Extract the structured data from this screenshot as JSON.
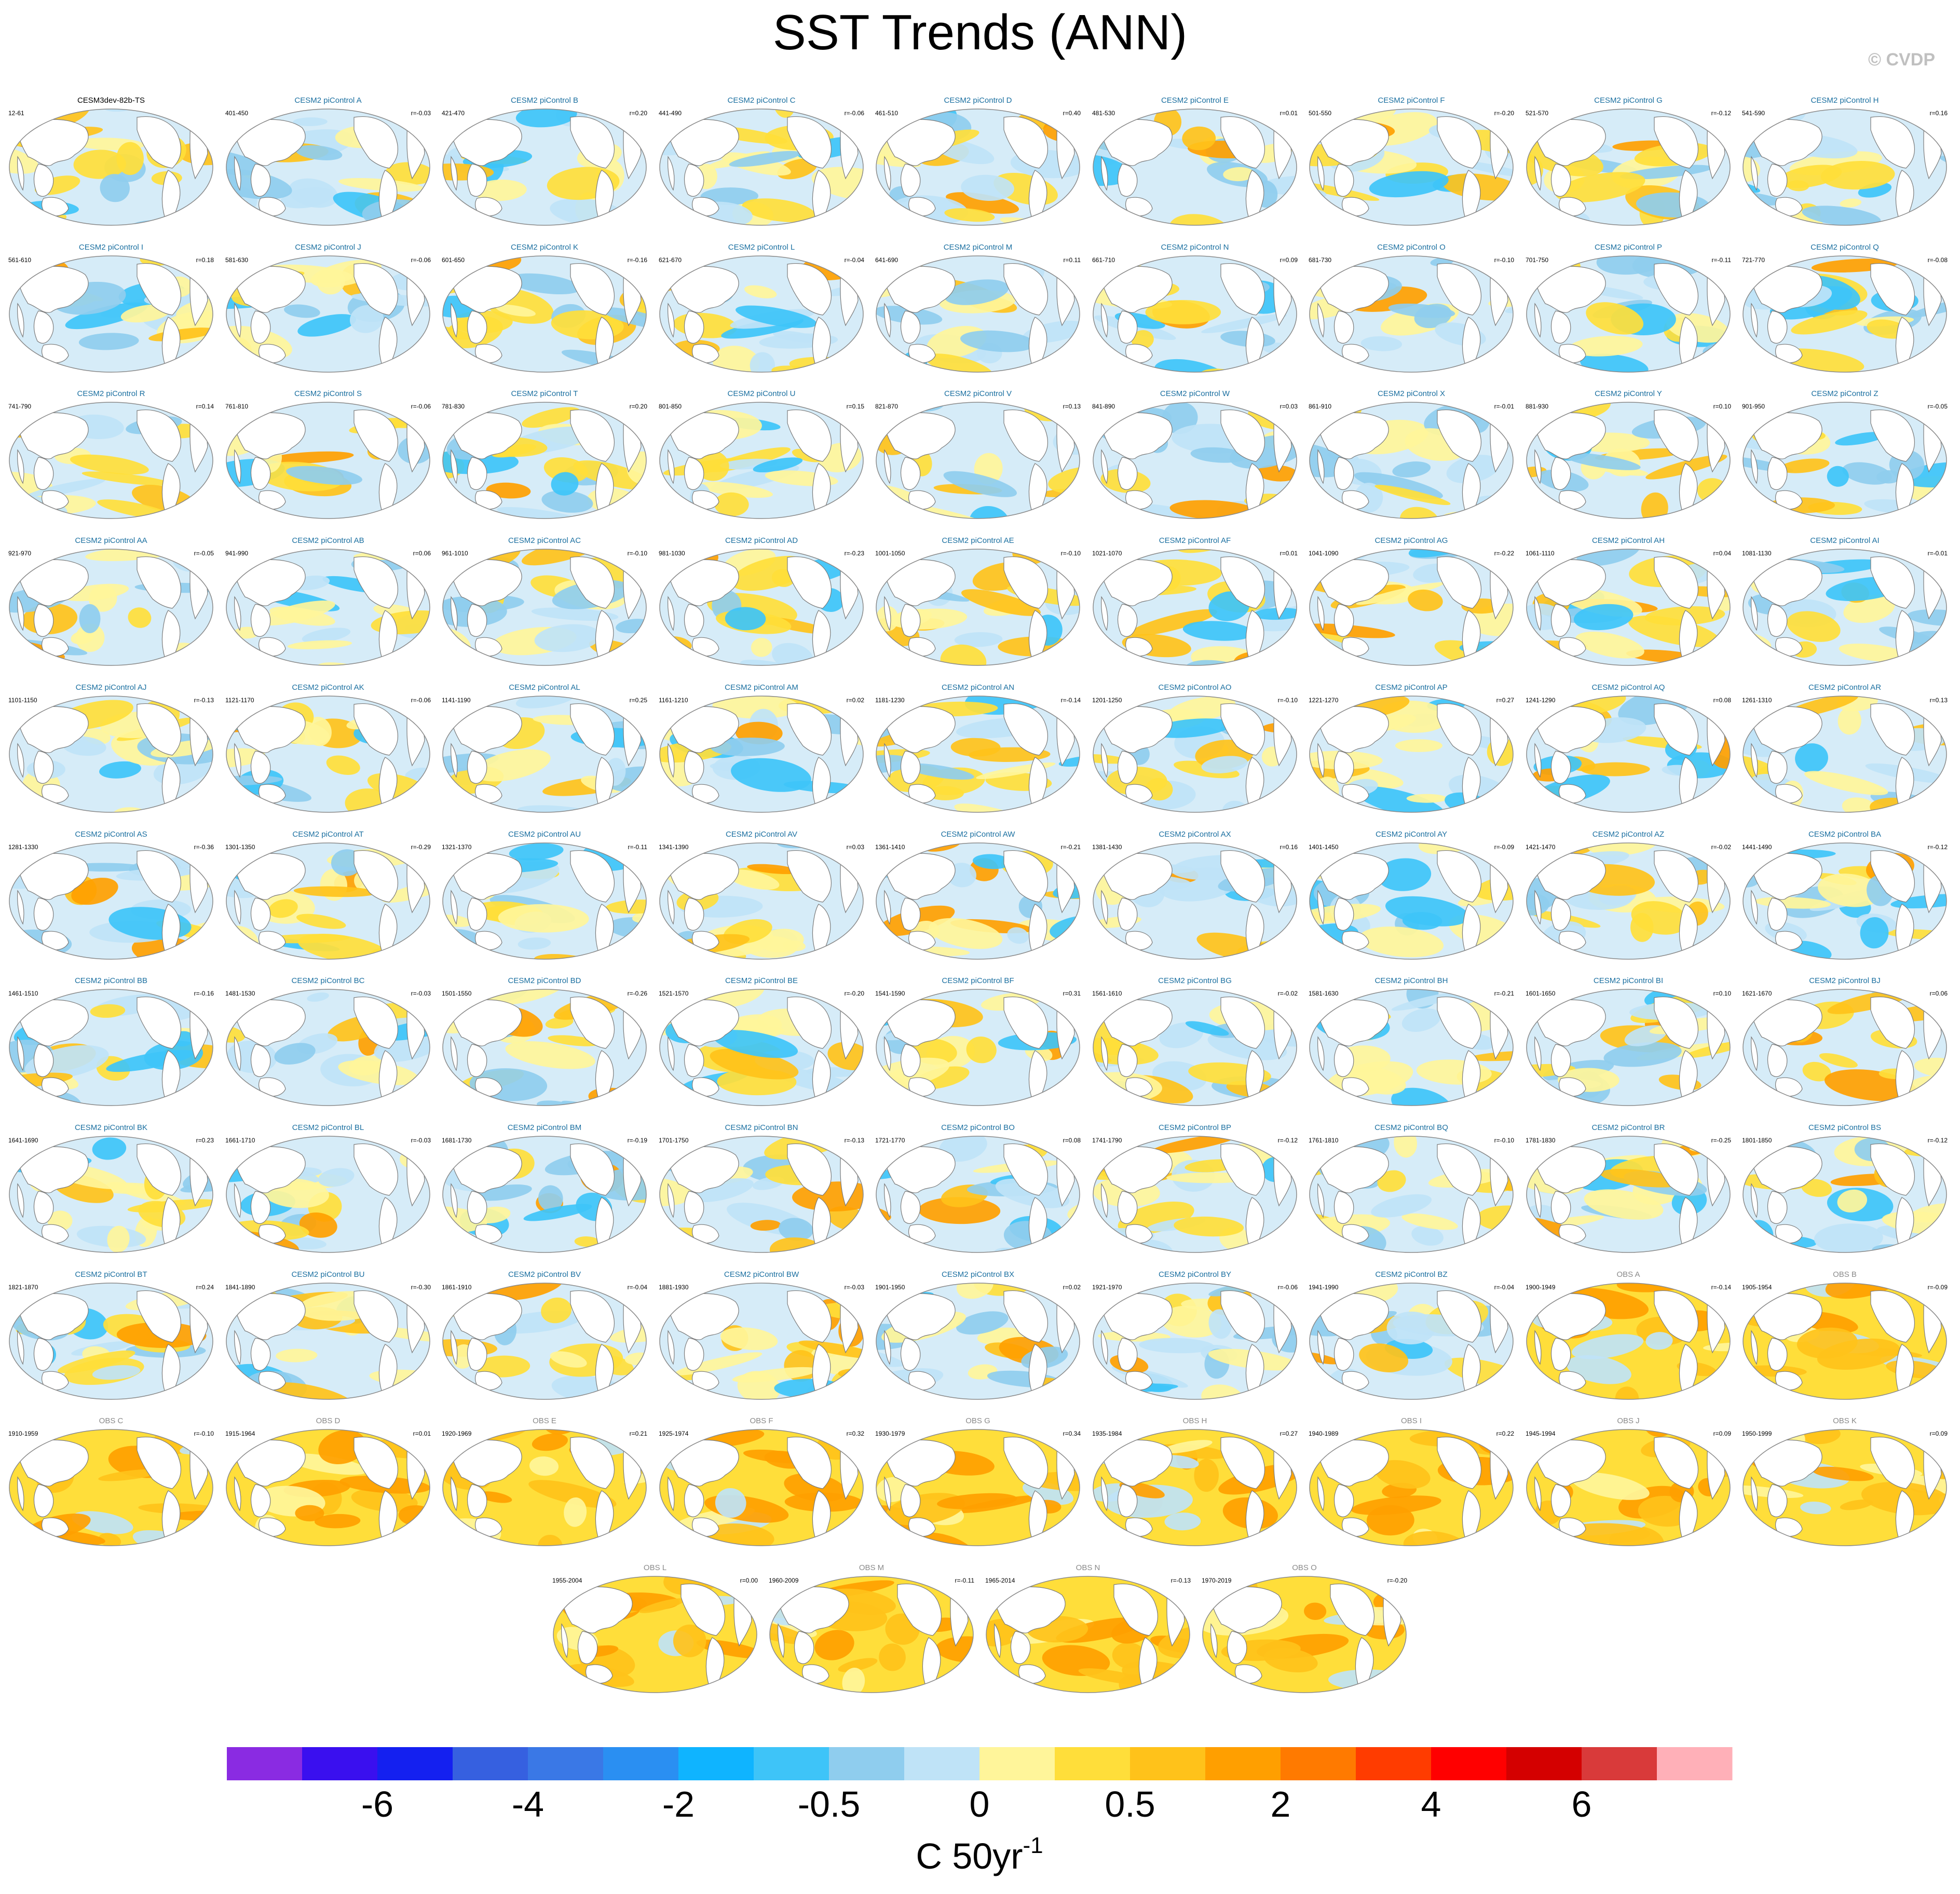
{
  "title": "SST Trends (ANN)",
  "credit": "© CVDP",
  "chart_data": {
    "type": "heatmap",
    "title": "SST Trends (ANN)",
    "colorbar": {
      "unit": "C 50yr",
      "unit_superscript": "-1",
      "tick_labels": [
        "-6",
        "-4",
        "-2",
        "-0.5",
        "0",
        "0.5",
        "2",
        "4",
        "6"
      ],
      "colors": [
        "#8a2be2",
        "#3a0fef",
        "#1420f0",
        "#3660e0",
        "#3a78e6",
        "#2a8ff2",
        "#0fb4ff",
        "#3ec4f8",
        "#8fcdee",
        "#bfe3f7",
        "#fff59a",
        "#ffde3a",
        "#ffc21a",
        "#ff9f00",
        "#ff7a00",
        "#ff3c00",
        "#ff0000",
        "#d40000",
        "#d93a3a",
        "#ffb0b8"
      ]
    },
    "panels": [
      {
        "title": "CESM3dev-82b-TS",
        "period": "12-61",
        "r": ""
      },
      {
        "title": "CESM2 piControl A",
        "period": "401-450",
        "r": "r=-0.03"
      },
      {
        "title": "CESM2 piControl B",
        "period": "421-470",
        "r": "r=0.20"
      },
      {
        "title": "CESM2 piControl C",
        "period": "441-490",
        "r": "r=-0.06"
      },
      {
        "title": "CESM2 piControl D",
        "period": "461-510",
        "r": "r=0.40"
      },
      {
        "title": "CESM2 piControl E",
        "period": "481-530",
        "r": "r=0.01"
      },
      {
        "title": "CESM2 piControl F",
        "period": "501-550",
        "r": "r=-0.20"
      },
      {
        "title": "CESM2 piControl G",
        "period": "521-570",
        "r": "r=-0.12"
      },
      {
        "title": "CESM2 piControl H",
        "period": "541-590",
        "r": "r=0.16"
      },
      {
        "title": "CESM2 piControl I",
        "period": "561-610",
        "r": "r=0.18"
      },
      {
        "title": "CESM2 piControl J",
        "period": "581-630",
        "r": "r=-0.06"
      },
      {
        "title": "CESM2 piControl K",
        "period": "601-650",
        "r": "r=-0.16"
      },
      {
        "title": "CESM2 piControl L",
        "period": "621-670",
        "r": "r=-0.04"
      },
      {
        "title": "CESM2 piControl M",
        "period": "641-690",
        "r": "r=0.11"
      },
      {
        "title": "CESM2 piControl N",
        "period": "661-710",
        "r": "r=0.09"
      },
      {
        "title": "CESM2 piControl O",
        "period": "681-730",
        "r": "r=-0.10"
      },
      {
        "title": "CESM2 piControl P",
        "period": "701-750",
        "r": "r=-0.11"
      },
      {
        "title": "CESM2 piControl Q",
        "period": "721-770",
        "r": "r=-0.08"
      },
      {
        "title": "CESM2 piControl R",
        "period": "741-790",
        "r": "r=0.14"
      },
      {
        "title": "CESM2 piControl S",
        "period": "761-810",
        "r": "r=-0.06"
      },
      {
        "title": "CESM2 piControl T",
        "period": "781-830",
        "r": "r=0.20"
      },
      {
        "title": "CESM2 piControl U",
        "period": "801-850",
        "r": "r=0.15"
      },
      {
        "title": "CESM2 piControl V",
        "period": "821-870",
        "r": "r=0.13"
      },
      {
        "title": "CESM2 piControl W",
        "period": "841-890",
        "r": "r=0.03"
      },
      {
        "title": "CESM2 piControl X",
        "period": "861-910",
        "r": "r=-0.01"
      },
      {
        "title": "CESM2 piControl Y",
        "period": "881-930",
        "r": "r=0.10"
      },
      {
        "title": "CESM2 piControl Z",
        "period": "901-950",
        "r": "r=-0.05"
      },
      {
        "title": "CESM2 piControl AA",
        "period": "921-970",
        "r": "r=-0.05"
      },
      {
        "title": "CESM2 piControl AB",
        "period": "941-990",
        "r": "r=0.06"
      },
      {
        "title": "CESM2 piControl AC",
        "period": "961-1010",
        "r": "r=-0.10"
      },
      {
        "title": "CESM2 piControl AD",
        "period": "981-1030",
        "r": "r=-0.23"
      },
      {
        "title": "CESM2 piControl AE",
        "period": "1001-1050",
        "r": "r=-0.10"
      },
      {
        "title": "CESM2 piControl AF",
        "period": "1021-1070",
        "r": "r=0.01"
      },
      {
        "title": "CESM2 piControl AG",
        "period": "1041-1090",
        "r": "r=-0.22"
      },
      {
        "title": "CESM2 piControl AH",
        "period": "1061-1110",
        "r": "r=0.04"
      },
      {
        "title": "CESM2 piControl AI",
        "period": "1081-1130",
        "r": "r=-0.01"
      },
      {
        "title": "CESM2 piControl AJ",
        "period": "1101-1150",
        "r": "r=-0.13"
      },
      {
        "title": "CESM2 piControl AK",
        "period": "1121-1170",
        "r": "r=-0.06"
      },
      {
        "title": "CESM2 piControl AL",
        "period": "1141-1190",
        "r": "r=0.25"
      },
      {
        "title": "CESM2 piControl AM",
        "period": "1161-1210",
        "r": "r=0.02"
      },
      {
        "title": "CESM2 piControl AN",
        "period": "1181-1230",
        "r": "r=-0.14"
      },
      {
        "title": "CESM2 piControl AO",
        "period": "1201-1250",
        "r": "r=-0.10"
      },
      {
        "title": "CESM2 piControl AP",
        "period": "1221-1270",
        "r": "r=0.27"
      },
      {
        "title": "CESM2 piControl AQ",
        "period": "1241-1290",
        "r": "r=0.08"
      },
      {
        "title": "CESM2 piControl AR",
        "period": "1261-1310",
        "r": "r=0.13"
      },
      {
        "title": "CESM2 piControl AS",
        "period": "1281-1330",
        "r": "r=-0.36"
      },
      {
        "title": "CESM2 piControl AT",
        "period": "1301-1350",
        "r": "r=-0.29"
      },
      {
        "title": "CESM2 piControl AU",
        "period": "1321-1370",
        "r": "r=-0.11"
      },
      {
        "title": "CESM2 piControl AV",
        "period": "1341-1390",
        "r": "r=0.03"
      },
      {
        "title": "CESM2 piControl AW",
        "period": "1361-1410",
        "r": "r=-0.21"
      },
      {
        "title": "CESM2 piControl AX",
        "period": "1381-1430",
        "r": "r=0.16"
      },
      {
        "title": "CESM2 piControl AY",
        "period": "1401-1450",
        "r": "r=-0.09"
      },
      {
        "title": "CESM2 piControl AZ",
        "period": "1421-1470",
        "r": "r=-0.02"
      },
      {
        "title": "CESM2 piControl BA",
        "period": "1441-1490",
        "r": "r=-0.12"
      },
      {
        "title": "CESM2 piControl BB",
        "period": "1461-1510",
        "r": "r=-0.16"
      },
      {
        "title": "CESM2 piControl BC",
        "period": "1481-1530",
        "r": "r=-0.03"
      },
      {
        "title": "CESM2 piControl BD",
        "period": "1501-1550",
        "r": "r=-0.26"
      },
      {
        "title": "CESM2 piControl BE",
        "period": "1521-1570",
        "r": "r=-0.20"
      },
      {
        "title": "CESM2 piControl BF",
        "period": "1541-1590",
        "r": "r=0.31"
      },
      {
        "title": "CESM2 piControl BG",
        "period": "1561-1610",
        "r": "r=-0.02"
      },
      {
        "title": "CESM2 piControl BH",
        "period": "1581-1630",
        "r": "r=-0.21"
      },
      {
        "title": "CESM2 piControl BI",
        "period": "1601-1650",
        "r": "r=0.10"
      },
      {
        "title": "CESM2 piControl BJ",
        "period": "1621-1670",
        "r": "r=0.06"
      },
      {
        "title": "CESM2 piControl BK",
        "period": "1641-1690",
        "r": "r=0.23"
      },
      {
        "title": "CESM2 piControl BL",
        "period": "1661-1710",
        "r": "r=-0.03"
      },
      {
        "title": "CESM2 piControl BM",
        "period": "1681-1730",
        "r": "r=-0.19"
      },
      {
        "title": "CESM2 piControl BN",
        "period": "1701-1750",
        "r": "r=-0.13"
      },
      {
        "title": "CESM2 piControl BO",
        "period": "1721-1770",
        "r": "r=0.08"
      },
      {
        "title": "CESM2 piControl BP",
        "period": "1741-1790",
        "r": "r=-0.12"
      },
      {
        "title": "CESM2 piControl BQ",
        "period": "1761-1810",
        "r": "r=-0.10"
      },
      {
        "title": "CESM2 piControl BR",
        "period": "1781-1830",
        "r": "r=-0.25"
      },
      {
        "title": "CESM2 piControl BS",
        "period": "1801-1850",
        "r": "r=-0.12"
      },
      {
        "title": "CESM2 piControl BT",
        "period": "1821-1870",
        "r": "r=0.24"
      },
      {
        "title": "CESM2 piControl BU",
        "period": "1841-1890",
        "r": "r=-0.30"
      },
      {
        "title": "CESM2 piControl BV",
        "period": "1861-1910",
        "r": "r=-0.04"
      },
      {
        "title": "CESM2 piControl BW",
        "period": "1881-1930",
        "r": "r=-0.03"
      },
      {
        "title": "CESM2 piControl BX",
        "period": "1901-1950",
        "r": "r=0.02"
      },
      {
        "title": "CESM2 piControl BY",
        "period": "1921-1970",
        "r": "r=-0.06"
      },
      {
        "title": "CESM2 piControl BZ",
        "period": "1941-1990",
        "r": "r=-0.04"
      },
      {
        "title": "OBS A",
        "period": "1900-1949",
        "r": "r=-0.14"
      },
      {
        "title": "OBS B",
        "period": "1905-1954",
        "r": "r=-0.09"
      },
      {
        "title": "OBS C",
        "period": "1910-1959",
        "r": "r=-0.10"
      },
      {
        "title": "OBS D",
        "period": "1915-1964",
        "r": "r=0.01"
      },
      {
        "title": "OBS E",
        "period": "1920-1969",
        "r": "r=0.21"
      },
      {
        "title": "OBS F",
        "period": "1925-1974",
        "r": "r=0.32"
      },
      {
        "title": "OBS G",
        "period": "1930-1979",
        "r": "r=0.34"
      },
      {
        "title": "OBS H",
        "period": "1935-1984",
        "r": "r=0.27"
      },
      {
        "title": "OBS I",
        "period": "1940-1989",
        "r": "r=0.22"
      },
      {
        "title": "OBS J",
        "period": "1945-1994",
        "r": "r=0.09"
      },
      {
        "title": "OBS K",
        "period": "1950-1999",
        "r": "r=0.09"
      },
      {
        "title": "OBS L",
        "period": "1955-2004",
        "r": "r=0.00"
      },
      {
        "title": "OBS M",
        "period": "1960-2009",
        "r": "r=-0.11"
      },
      {
        "title": "OBS N",
        "period": "1965-2014",
        "r": "r=-0.13"
      },
      {
        "title": "OBS O",
        "period": "1970-2019",
        "r": "r=-0.20"
      }
    ]
  }
}
